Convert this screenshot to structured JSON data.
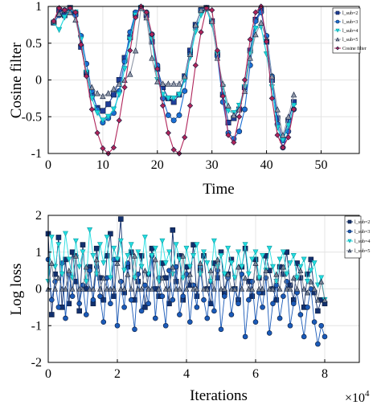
{
  "chart_data": [
    {
      "type": "line",
      "xlabel": "Time",
      "ylabel": "Cosine filter",
      "xlim": [
        0,
        57
      ],
      "ylim": [
        -1,
        1
      ],
      "xticks": [
        "0",
        "10",
        "20",
        "30",
        "40",
        "50"
      ],
      "yticks": [
        "1",
        "0.5",
        "0",
        "-0.5",
        "-1"
      ],
      "grid": true,
      "legend_position": "top-right",
      "legend": [
        "l_sub=2",
        "l_sub=3",
        "l_sub=4",
        "l_sub=5",
        "Cosine filter"
      ],
      "x": [
        1,
        2,
        3,
        4,
        5,
        6,
        7,
        8,
        9,
        10,
        11,
        12,
        13,
        14,
        15,
        16,
        17,
        18,
        19,
        20,
        21,
        22,
        23,
        24,
        25,
        26,
        27,
        28,
        29,
        30,
        31,
        32,
        33,
        34,
        35,
        36,
        37,
        38,
        39,
        40,
        41,
        42,
        43,
        44,
        45
      ],
      "series": [
        {
          "name": "l_sub=2",
          "color": "#1f3d99",
          "marker": "square",
          "values": [
            0.78,
            0.95,
            0.88,
            0.98,
            0.9,
            0.45,
            0.1,
            -0.2,
            -0.38,
            -0.42,
            -0.33,
            -0.2,
            0.0,
            0.3,
            0.58,
            0.9,
            0.98,
            0.88,
            0.52,
            0.15,
            -0.1,
            -0.25,
            -0.3,
            -0.2,
            0.05,
            0.4,
            0.75,
            0.95,
            0.98,
            0.8,
            0.35,
            -0.2,
            -0.58,
            -0.52,
            -0.4,
            -0.1,
            0.4,
            0.82,
            0.95,
            0.52,
            0.0,
            -0.52,
            -0.82,
            -0.55,
            -0.3
          ]
        },
        {
          "name": "l_sub=3",
          "color": "#1a6fd4",
          "marker": "circle",
          "values": [
            0.78,
            0.88,
            0.95,
            0.92,
            0.88,
            0.6,
            0.22,
            -0.15,
            -0.4,
            -0.58,
            -0.52,
            -0.45,
            -0.15,
            0.25,
            0.65,
            0.92,
            0.98,
            0.92,
            0.62,
            0.2,
            -0.25,
            -0.48,
            -0.55,
            -0.48,
            -0.15,
            0.35,
            0.72,
            0.95,
            0.98,
            0.8,
            0.32,
            -0.3,
            -0.72,
            -0.8,
            -0.7,
            -0.4,
            0.2,
            0.8,
            0.92,
            0.6,
            0.05,
            -0.6,
            -0.92,
            -0.7,
            -0.4
          ]
        },
        {
          "name": "l_sub=4",
          "color": "#18d6dc",
          "marker": "triangle-down",
          "values": [
            0.78,
            0.68,
            0.85,
            0.96,
            0.92,
            0.55,
            0.1,
            -0.25,
            -0.45,
            -0.55,
            -0.5,
            -0.4,
            -0.2,
            0.15,
            0.55,
            0.88,
            0.98,
            0.9,
            0.55,
            0.0,
            -0.2,
            -0.25,
            -0.25,
            -0.2,
            0.0,
            0.3,
            0.65,
            0.88,
            0.96,
            0.75,
            0.35,
            -0.1,
            -0.42,
            -0.45,
            -0.35,
            -0.1,
            0.35,
            0.7,
            0.72,
            0.35,
            -0.1,
            -0.65,
            -0.82,
            -0.62,
            -0.35
          ]
        },
        {
          "name": "l_sub=5",
          "color": "#9098a8",
          "marker": "triangle-up",
          "values": [
            0.8,
            0.9,
            0.95,
            0.92,
            0.82,
            0.5,
            0.08,
            -0.1,
            -0.18,
            -0.22,
            -0.18,
            -0.12,
            -0.05,
            0.0,
            0.08,
            0.4,
            0.98,
            0.85,
            0.3,
            -0.02,
            -0.05,
            -0.05,
            -0.05,
            -0.05,
            0.05,
            0.35,
            0.75,
            0.95,
            0.98,
            0.8,
            0.3,
            -0.05,
            -0.35,
            -0.48,
            -0.4,
            -0.15,
            0.3,
            0.62,
            0.78,
            0.55,
            0.05,
            -0.4,
            -0.75,
            -0.5,
            -0.2
          ]
        },
        {
          "name": "Cosine filter",
          "color": "#b0245a",
          "marker": "diamond",
          "values": [
            0.8,
            0.98,
            0.95,
            0.98,
            0.92,
            0.48,
            0.05,
            -0.4,
            -0.72,
            -0.93,
            -1.0,
            -0.92,
            -0.55,
            -0.1,
            0.4,
            0.85,
            1.0,
            0.92,
            0.62,
            0.15,
            -0.35,
            -0.72,
            -0.95,
            -1.0,
            -0.78,
            -0.35,
            0.2,
            0.65,
            0.98,
            0.95,
            0.4,
            -0.22,
            -0.75,
            -0.85,
            -0.5,
            0.0,
            0.55,
            0.92,
            1.0,
            0.52,
            -0.25,
            -0.75,
            -0.92,
            -0.78,
            -0.4
          ]
        }
      ]
    },
    {
      "type": "line",
      "xlabel": "Iterations",
      "ylabel": "Log loss",
      "x_multiplier": "×10",
      "x_multiplier_exp": "4",
      "xlim": [
        0,
        9
      ],
      "ylim": [
        -2,
        2
      ],
      "xticks": [
        "0",
        "2",
        "4",
        "6",
        "8"
      ],
      "yticks": [
        "2",
        "1",
        "0",
        "-1",
        "-2"
      ],
      "grid": true,
      "legend_position": "top-right",
      "legend": [
        "l_sub=2",
        "l_sub=3",
        "l_sub=4",
        "l_sub=5"
      ],
      "x": [
        0.0,
        0.1,
        0.2,
        0.3,
        0.4,
        0.5,
        0.6,
        0.7,
        0.8,
        0.9,
        1.0,
        1.1,
        1.2,
        1.3,
        1.4,
        1.5,
        1.6,
        1.7,
        1.8,
        1.9,
        2.0,
        2.1,
        2.2,
        2.3,
        2.4,
        2.5,
        2.6,
        2.7,
        2.8,
        2.9,
        3.0,
        3.1,
        3.2,
        3.3,
        3.4,
        3.5,
        3.6,
        3.7,
        3.8,
        3.9,
        4.0,
        4.1,
        4.2,
        4.3,
        4.4,
        4.5,
        4.6,
        4.7,
        4.8,
        4.9,
        5.0,
        5.1,
        5.2,
        5.3,
        5.4,
        5.5,
        5.6,
        5.7,
        5.8,
        5.9,
        6.0,
        6.1,
        6.2,
        6.3,
        6.4,
        6.5,
        6.6,
        6.7,
        6.8,
        6.9,
        7.0,
        7.1,
        7.2,
        7.3,
        7.4,
        7.5,
        7.6,
        7.7,
        7.8,
        7.9,
        8.0
      ],
      "series": [
        {
          "name": "l_sub=2",
          "color": "#12306e",
          "marker": "square",
          "values": [
            1.5,
            -0.7,
            0.4,
            1.4,
            -0.5,
            0.8,
            -0.4,
            1.0,
            0.2,
            -0.6,
            1.2,
            0.0,
            0.6,
            -0.4,
            1.1,
            0.3,
            -0.3,
            0.9,
            1.5,
            -0.2,
            0.8,
            1.9,
            -0.1,
            0.6,
            1.0,
            -0.3,
            0.2,
            0.9,
            -0.5,
            0.4,
            1.1,
            0.0,
            -0.2,
            0.7,
            0.3,
            -0.4,
            1.6,
            0.2,
            0.9,
            -0.3,
            0.6,
            0.1,
            1.2,
            -0.2,
            0.5,
            0.9,
            0.0,
            -0.4,
            0.7,
            0.3,
            1.0,
            -0.1,
            0.4,
            0.8,
            0.0,
            -0.3,
            0.6,
            1.1,
            0.2,
            -0.2,
            0.8,
            0.3,
            -0.1,
            0.9,
            0.5,
            0.0,
            -0.3,
            0.6,
            0.4,
            1.0,
            0.1,
            -0.3,
            0.7,
            0.3,
            -0.5,
            0.4,
            0.8,
            -0.1,
            -0.6,
            -0.3,
            -0.4
          ]
        },
        {
          "name": "l_sub=3",
          "color": "#1a5ab8",
          "marker": "circle",
          "values": [
            0.8,
            -0.3,
            0.2,
            -0.5,
            0.7,
            -0.8,
            0.4,
            -0.2,
            0.9,
            -0.4,
            0.1,
            -0.7,
            0.5,
            -0.3,
            0.6,
            -0.2,
            -0.9,
            0.3,
            -0.4,
            0.8,
            -1.0,
            0.2,
            -0.5,
            0.7,
            -0.3,
            -1.1,
            0.4,
            -0.6,
            0.1,
            -0.4,
            0.9,
            -0.8,
            0.3,
            -0.2,
            -1.0,
            0.5,
            -0.3,
            0.6,
            -0.7,
            -0.2,
            0.4,
            -0.9,
            0.1,
            -0.5,
            0.6,
            -0.3,
            -0.8,
            0.2,
            -0.6,
            0.5,
            -1.1,
            -0.2,
            0.3,
            -0.7,
            0.0,
            -0.4,
            0.4,
            -1.3,
            -0.3,
            0.2,
            -0.9,
            -0.1,
            -0.5,
            0.3,
            -1.2,
            -0.4,
            0.1,
            -0.8,
            -0.2,
            0.2,
            -1.0,
            -0.4,
            -0.1,
            -0.7,
            -1.3,
            -0.5,
            0.0,
            -0.9,
            -1.5,
            -1.0,
            -1.3
          ]
        },
        {
          "name": "l_sub=4",
          "color": "#22dde0",
          "marker": "triangle-down",
          "values": [
            0.2,
            1.4,
            0.6,
            1.2,
            0.4,
            1.5,
            0.8,
            0.3,
            1.3,
            0.6,
            1.0,
            0.2,
            1.6,
            0.9,
            0.4,
            1.2,
            0.7,
            1.4,
            0.3,
            1.1,
            0.8,
            1.3,
            0.5,
            0.9,
            1.2,
            0.3,
            1.0,
            0.6,
            1.4,
            0.4,
            0.9,
            1.1,
            0.2,
            1.3,
            0.7,
            1.0,
            0.4,
            1.2,
            0.8,
            0.3,
            1.1,
            0.6,
            0.9,
            1.2,
            0.4,
            1.0,
            0.7,
            0.2,
            1.3,
            0.6,
            0.9,
            0.4,
            1.1,
            0.7,
            0.3,
            1.0,
            0.6,
            1.2,
            0.4,
            0.8,
            1.0,
            0.3,
            0.9,
            0.5,
            1.1,
            0.6,
            0.2,
            0.8,
            1.0,
            0.4,
            0.7,
            0.9,
            0.3,
            0.6,
            0.8,
            0.2,
            0.5,
            0.7,
            0.1,
            0.3,
            -0.3
          ]
        },
        {
          "name": "l_sub=5",
          "color": "#7a8494",
          "marker": "triangle-up",
          "values": [
            0.0,
            0.7,
            0.0,
            0.3,
            0.0,
            0.0,
            0.5,
            0.0,
            0.9,
            0.0,
            0.0,
            0.6,
            0.0,
            0.0,
            0.8,
            0.0,
            0.3,
            0.0,
            0.0,
            0.0,
            0.7,
            0.0,
            0.0,
            0.4,
            0.0,
            0.9,
            0.0,
            0.0,
            0.5,
            0.0,
            0.0,
            0.8,
            0.0,
            0.3,
            0.0,
            0.0,
            0.6,
            0.0,
            0.0,
            0.9,
            0.0,
            0.4,
            0.0,
            0.0,
            0.7,
            0.0,
            0.0,
            0.5,
            0.0,
            0.8,
            0.0,
            0.0,
            0.4,
            0.0,
            0.0,
            0.6,
            0.0,
            0.3,
            0.0,
            0.0,
            0.7,
            0.0,
            0.0,
            0.5,
            0.0,
            0.0,
            0.4,
            0.0,
            0.6,
            0.0,
            0.0,
            0.3,
            0.0,
            0.5,
            0.0,
            -0.1,
            0.2,
            0.0,
            -0.3,
            0.2,
            -0.3
          ]
        }
      ]
    }
  ]
}
